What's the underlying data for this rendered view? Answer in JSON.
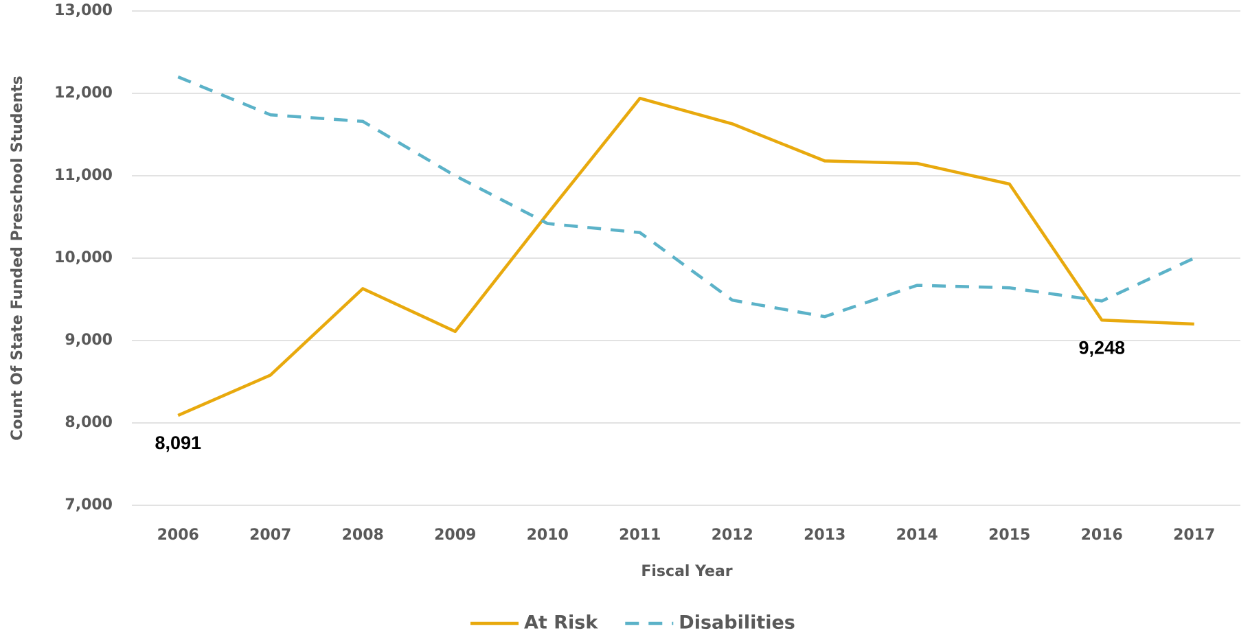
{
  "chart_data": {
    "type": "line",
    "categories": [
      "2006",
      "2007",
      "2008",
      "2009",
      "2010",
      "2011",
      "2012",
      "2013",
      "2014",
      "2015",
      "2016",
      "2017"
    ],
    "series": [
      {
        "name": "At Risk",
        "color": "#e8a90d",
        "dashed": false,
        "values": [
          8091,
          8580,
          9630,
          9110,
          10540,
          11940,
          11630,
          11180,
          11150,
          10900,
          9248,
          9200
        ],
        "value_labels": [
          "8,091",
          null,
          null,
          null,
          null,
          null,
          null,
          null,
          null,
          null,
          "9,248",
          null
        ]
      },
      {
        "name": "Disabilities",
        "color": "#5bb2c8",
        "dashed": true,
        "values": [
          12200,
          11740,
          11660,
          11000,
          10420,
          10310,
          9490,
          9290,
          9670,
          9640,
          9480,
          10000
        ]
      }
    ],
    "ylim": [
      7000,
      13000
    ],
    "yticks": [
      {
        "value": 7000,
        "label": "7,000"
      },
      {
        "value": 8000,
        "label": "8,000"
      },
      {
        "value": 9000,
        "label": "9,000"
      },
      {
        "value": 10000,
        "label": "10,000"
      },
      {
        "value": 11000,
        "label": "11,000"
      },
      {
        "value": 12000,
        "label": "12,000"
      },
      {
        "value": 13000,
        "label": "13,000"
      }
    ],
    "grid": true,
    "x_label": "Fiscal Year",
    "y_label": "Count Of State Funded Preschool Students",
    "legend": "bottom"
  }
}
